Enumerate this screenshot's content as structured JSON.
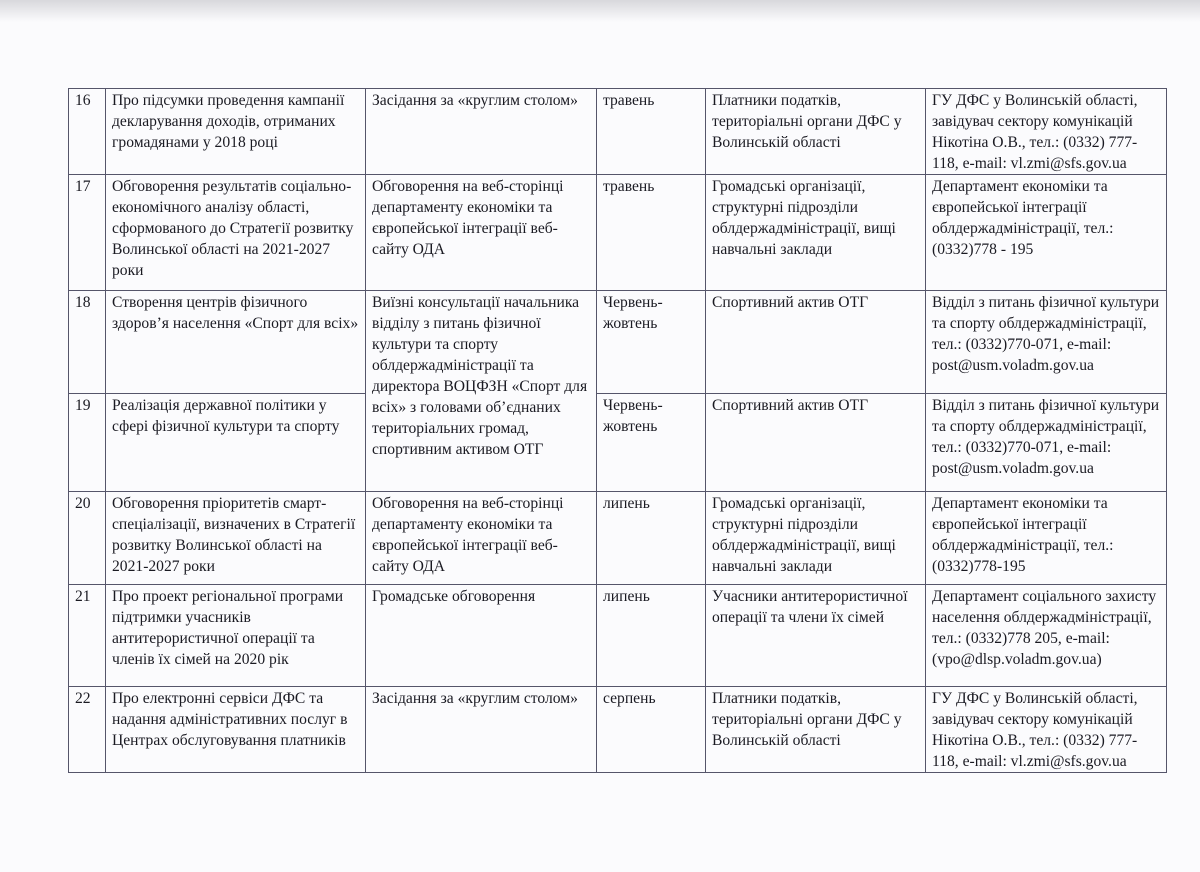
{
  "rows": [
    {
      "num": "16",
      "topic": "Про підсумки проведення кампанії декларування доходів, отриманих громадянами у 2018 році",
      "form": "Засідання за «круглим столом»",
      "term": "травень",
      "participants": "Платники податків, територіальні органи ДФС у Волинській області",
      "responsible": "ГУ ДФС у Волинській області, завідувач сектору комунікацій Нікотіна О.В., тел.: (0332) 777-118, e-mail: vl.zmi@sfs.gov.ua"
    },
    {
      "num": "17",
      "topic": "Обговорення результатів соціально-економічного аналізу області, сформованого до Стратегії розвитку Волинської області на 2021-2027 роки",
      "form": "Обговорення на веб-сторінці департаменту економіки та європейської інтеграції веб-сайту ОДА",
      "term": "травень",
      "participants": "Громадські організації, структурні підрозділи облдержадміністрації, вищі навчальні заклади",
      "responsible": "Департамент економіки та європейської інтеграції облдержадміністрації, тел.: (0332)778 - 195"
    },
    {
      "num": "18",
      "topic": "Створення центрів фізичного здоров’я населення «Спорт для всіх»",
      "form": "Виїзні консультації начальника відділу з питань фізичної культури та спорту облдержадміністрації та директора ВОЦФЗН «Спорт для всіх» з головами об’єднаних територіальних громад, спортивним активом ОТГ",
      "term": "Червень-жовтень",
      "participants": "Спортивний актив ОТГ",
      "responsible": "Відділ з питань фізичної культури та спорту облдержадміністрації, тел.: (0332)770-071, e-mail: post@usm.voladm.gov.ua"
    },
    {
      "num": "19",
      "topic": "Реалізація державної політики у сфері фізичної культури та спорту",
      "form": "",
      "term": "Червень-жовтень",
      "participants": "Спортивний актив ОТГ",
      "responsible": "Відділ з питань фізичної культури та спорту облдержадміністрації, тел.: (0332)770-071, e-mail: post@usm.voladm.gov.ua"
    },
    {
      "num": "20",
      "topic": "Обговорення пріоритетів смарт-спеціалізації, визначених в Стратегії розвитку Волинської області на 2021-2027 роки",
      "form": "Обговорення на веб-сторінці департаменту економіки та європейської інтеграції веб-сайту ОДА",
      "term": "липень",
      "participants": "Громадські організації, структурні підрозділи облдержадміністрації, вищі навчальні заклади",
      "responsible": "Департамент економіки та європейської інтеграції облдержадміністрації, тел.: (0332)778-195"
    },
    {
      "num": "21",
      "topic": "Про проект регіональної програми підтримки учасників антитерористичної операції та членів їх сімей на 2020 рік",
      "form": "Громадське обговорення",
      "term": "липень",
      "participants": "Учасники антитерористичної операції та члени їх сімей",
      "responsible": "Департамент соціального захисту населення облдержадміністрації, тел.: (0332)778 205, e-mail: (vpo@dlsp.voladm.gov.ua)"
    },
    {
      "num": "22",
      "topic": "Про електронні сервіси ДФС та надання адміністративних послуг в Центрах обслуговування платників",
      "form": "Засідання за «круглим столом»",
      "term": "серпень",
      "participants": "Платники податків, територіальні органи ДФС у Волинській області",
      "responsible": "ГУ ДФС у Волинській області, завідувач сектору комунікацій Нікотіна О.В., тел.: (0332) 777-118, e-mail: vl.zmi@sfs.gov.ua"
    }
  ]
}
